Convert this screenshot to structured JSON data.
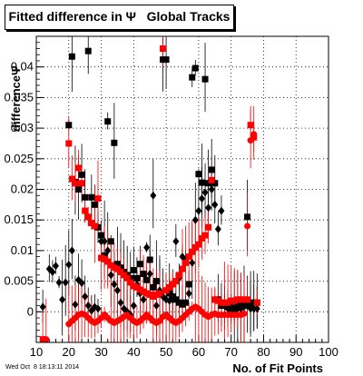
{
  "title": "Fitted difference in Ψ   Global Tracks",
  "footer": "Wed Oct  8 18:13:11 2014",
  "chart_data": {
    "type": "scatter",
    "xlabel": "No. of Fit Points",
    "ylabel": "differenceΨ",
    "xlim": [
      10,
      100
    ],
    "ylim": [
      -0.005,
      0.045
    ],
    "x_ticks": [
      "10",
      "20",
      "30",
      "40",
      "50",
      "60",
      "70",
      "80",
      "90",
      "100"
    ],
    "y_ticks": [
      "0",
      "0.005",
      "0.01",
      "0.015",
      "0.02",
      "0.025",
      "0.03",
      "0.035",
      "0.04"
    ],
    "grid": true,
    "series": [
      {
        "marker": "square",
        "color": "#000000",
        "points": [
          [
            20,
            0.0305
          ],
          [
            21,
            0.0417
          ],
          [
            22,
            0.0212
          ],
          [
            23,
            0.02
          ],
          [
            24,
            0.0224
          ],
          [
            25,
            0.0187
          ],
          [
            26,
            0.0426
          ],
          [
            27,
            0.0187
          ],
          [
            28,
            0.0175
          ],
          [
            29,
            0.0138
          ],
          [
            30,
            0.0125
          ],
          [
            31,
            0.0092
          ],
          [
            32,
            0.0311
          ],
          [
            33,
            0.0115
          ],
          [
            34,
            0.0276
          ],
          [
            35,
            0.0078
          ],
          [
            36,
            0.0072
          ],
          [
            37,
            0.0065
          ],
          [
            38,
            0.006
          ],
          [
            39,
            0.0055
          ],
          [
            40,
            0.0068
          ],
          [
            41,
            0.0055
          ],
          [
            42,
            0.0078
          ],
          [
            43,
            0.0062
          ],
          [
            44,
            0.0052
          ],
          [
            45,
            0.0085
          ],
          [
            46,
            0.004
          ],
          [
            47,
            0.005
          ],
          [
            48,
            0.003
          ],
          [
            49,
            0.0412
          ],
          [
            50,
            0.0412
          ],
          [
            51,
            0.003
          ],
          [
            52,
            0.0025
          ],
          [
            53,
            0.002
          ],
          [
            54,
            0.0015
          ],
          [
            55,
            0.0012
          ],
          [
            56,
            0.0015
          ],
          [
            57,
            0.0045
          ],
          [
            58,
            0.0383
          ],
          [
            59,
            0.0398
          ],
          [
            60,
            0.0225
          ],
          [
            61,
            0.0211
          ],
          [
            62,
            0.038
          ],
          [
            63,
            0.021
          ],
          [
            64,
            0.0232
          ],
          [
            65,
            0.021
          ],
          [
            66,
            0.002
          ],
          [
            67,
            0.001
          ],
          [
            68,
            0.001
          ],
          [
            69,
            0.0008
          ],
          [
            70,
            0.0005
          ],
          [
            71,
            0.0005
          ],
          [
            72,
            0.001
          ],
          [
            73,
            0.0008
          ],
          [
            74,
            0.001
          ],
          [
            75,
            0.0155
          ],
          [
            76,
            0.001
          ],
          [
            77,
            0.0015
          ],
          [
            78,
            0.0015
          ]
        ]
      },
      {
        "marker": "diamond",
        "color": "#000000",
        "points": [
          [
            12,
            0.0008
          ],
          [
            14,
            0.007
          ],
          [
            15,
            0.0065
          ],
          [
            16,
            0.0075
          ],
          [
            17,
            0.0048
          ],
          [
            18,
            0.002
          ],
          [
            19,
            0.0048
          ],
          [
            20,
            0.0077
          ],
          [
            21,
            0.01
          ],
          [
            22,
            0.0012
          ],
          [
            23,
            0.0052
          ],
          [
            24,
            0.0047
          ],
          [
            25,
            0.0025
          ],
          [
            26,
            0.001
          ],
          [
            27,
            0.0002
          ],
          [
            28,
            0.0008
          ],
          [
            29,
            0.0005
          ],
          [
            30,
            0.0115
          ],
          [
            31,
            0.0115
          ],
          [
            32,
            0.01
          ],
          [
            33,
            0.006
          ],
          [
            34,
            0.0045
          ],
          [
            35,
            0.0035
          ],
          [
            36,
            0.0015
          ],
          [
            37,
            0.0005
          ],
          [
            38,
            0.0
          ],
          [
            39,
            -0.0005
          ],
          [
            40,
            0.001
          ],
          [
            41,
            0.0045
          ],
          [
            42,
            0.003
          ],
          [
            43,
            0.002
          ],
          [
            44,
            0.0105
          ],
          [
            45,
            0.0062
          ],
          [
            46,
            0.019
          ],
          [
            47,
            0.001
          ],
          [
            48,
            0.0035
          ],
          [
            49,
            0.0025
          ],
          [
            50,
            0.002
          ],
          [
            51,
            0.0018
          ],
          [
            52,
            0.002
          ],
          [
            53,
            0.0115
          ],
          [
            54,
            0.0055
          ],
          [
            55,
            0.009
          ],
          [
            56,
            0.0085
          ],
          [
            57,
            0.003
          ],
          [
            58,
            0.008
          ],
          [
            59,
            0.015
          ],
          [
            60,
            0.0165
          ],
          [
            61,
            0.0185
          ],
          [
            62,
            0.0195
          ],
          [
            63,
            0.017
          ],
          [
            64,
            0.02
          ],
          [
            65,
            0.0175
          ],
          [
            66,
            0.0135
          ],
          [
            67,
            0.0165
          ],
          [
            68,
            0.001
          ],
          [
            69,
            0.0005
          ],
          [
            70,
            0.001
          ],
          [
            71,
            0.0
          ],
          [
            72,
            0.0005
          ],
          [
            73,
            0.0005
          ],
          [
            74,
            0.0008
          ],
          [
            75,
            0.001
          ],
          [
            76,
            0.0005
          ],
          [
            77,
            0.0005
          ],
          [
            78,
            0.0005
          ]
        ]
      },
      {
        "marker": "square",
        "color": "#ff0000",
        "points": [
          [
            12,
            -0.0045
          ],
          [
            20,
            0.0275
          ],
          [
            21,
            0.0217
          ],
          [
            22,
            0.021
          ],
          [
            23,
            0.0235
          ],
          [
            24,
            0.021
          ],
          [
            25,
            0.0165
          ],
          [
            26,
            0.0155
          ],
          [
            27,
            0.0145
          ],
          [
            28,
            0.014
          ],
          [
            29,
            0.0185
          ],
          [
            30,
            0.0088
          ],
          [
            31,
            0.0086
          ],
          [
            32,
            0.0082
          ],
          [
            33,
            0.0076
          ],
          [
            34,
            0.0072
          ],
          [
            35,
            0.007
          ],
          [
            36,
            0.0065
          ],
          [
            37,
            0.006
          ],
          [
            38,
            0.0055
          ],
          [
            39,
            0.0048
          ],
          [
            40,
            0.0042
          ],
          [
            41,
            0.004
          ],
          [
            42,
            0.0036
          ],
          [
            43,
            0.0033
          ],
          [
            44,
            0.003
          ],
          [
            45,
            0.0028
          ],
          [
            46,
            0.0025
          ],
          [
            47,
            0.0028
          ],
          [
            48,
            0.003
          ],
          [
            49,
            0.043
          ],
          [
            50,
            0.0035
          ],
          [
            51,
            0.004
          ],
          [
            52,
            0.0045
          ],
          [
            53,
            0.005
          ],
          [
            54,
            0.006
          ],
          [
            55,
            0.007
          ],
          [
            56,
            0.008
          ],
          [
            57,
            0.009
          ],
          [
            58,
            0.0098
          ],
          [
            59,
            0.0105
          ],
          [
            60,
            0.011
          ],
          [
            61,
            0.012
          ],
          [
            62,
            0.0125
          ],
          [
            63,
            0.0138
          ],
          [
            64,
            0.0215
          ],
          [
            65,
            0.002
          ],
          [
            66,
            0.0018
          ],
          [
            67,
            0.0015
          ],
          [
            68,
            0.0015
          ],
          [
            69,
            0.0015
          ],
          [
            70,
            0.0018
          ],
          [
            71,
            0.0018
          ],
          [
            72,
            0.002
          ],
          [
            73,
            0.002
          ],
          [
            74,
            0.002
          ],
          [
            75,
            0.002
          ],
          [
            76,
            0.0305
          ],
          [
            77,
            0.0285
          ],
          [
            78,
            0.0015
          ]
        ]
      },
      {
        "marker": "circle",
        "color": "#ff0000",
        "points": [
          [
            13,
            -0.0045
          ],
          [
            20,
            -0.002
          ],
          [
            21,
            -0.0015
          ],
          [
            22,
            -0.001
          ],
          [
            23,
            -0.0005
          ],
          [
            24,
            -0.0003
          ],
          [
            25,
            -0.0005
          ],
          [
            26,
            -0.001
          ],
          [
            27,
            -0.0015
          ],
          [
            28,
            -0.0018
          ],
          [
            29,
            -0.0015
          ],
          [
            30,
            -0.001
          ],
          [
            31,
            -0.0005
          ],
          [
            32,
            -0.001
          ],
          [
            33,
            -0.0015
          ],
          [
            34,
            -0.0018
          ],
          [
            35,
            -0.0015
          ],
          [
            36,
            -0.0012
          ],
          [
            37,
            -0.0008
          ],
          [
            38,
            -0.0005
          ],
          [
            39,
            -0.001
          ],
          [
            40,
            -0.0015
          ],
          [
            41,
            -0.0018
          ],
          [
            42,
            -0.0015
          ],
          [
            43,
            -0.001
          ],
          [
            44,
            -0.0005
          ],
          [
            45,
            -0.001
          ],
          [
            46,
            -0.0015
          ],
          [
            47,
            -0.0018
          ],
          [
            48,
            -0.0015
          ],
          [
            49,
            -0.0008
          ],
          [
            50,
            -0.0005
          ],
          [
            51,
            -0.001
          ],
          [
            52,
            -0.0015
          ],
          [
            53,
            -0.0018
          ],
          [
            54,
            -0.0015
          ],
          [
            55,
            -0.001
          ],
          [
            56,
            -0.0005
          ],
          [
            57,
            0.0
          ],
          [
            58,
            0.0005
          ],
          [
            59,
            0.0008
          ],
          [
            60,
            0.0005
          ],
          [
            61,
            0.0
          ],
          [
            62,
            -0.0005
          ],
          [
            63,
            -0.0008
          ],
          [
            64,
            -0.0005
          ],
          [
            65,
            -0.0003
          ],
          [
            66,
            -0.0005
          ],
          [
            67,
            -0.0005
          ],
          [
            68,
            -0.0005
          ],
          [
            69,
            -0.0005
          ],
          [
            70,
            -0.0005
          ],
          [
            71,
            -0.0005
          ],
          [
            72,
            -0.0005
          ],
          [
            73,
            -0.0005
          ],
          [
            74,
            -0.0003
          ],
          [
            75,
            0.014
          ],
          [
            76,
            0.028
          ],
          [
            77,
            0.029
          ]
        ]
      }
    ]
  }
}
